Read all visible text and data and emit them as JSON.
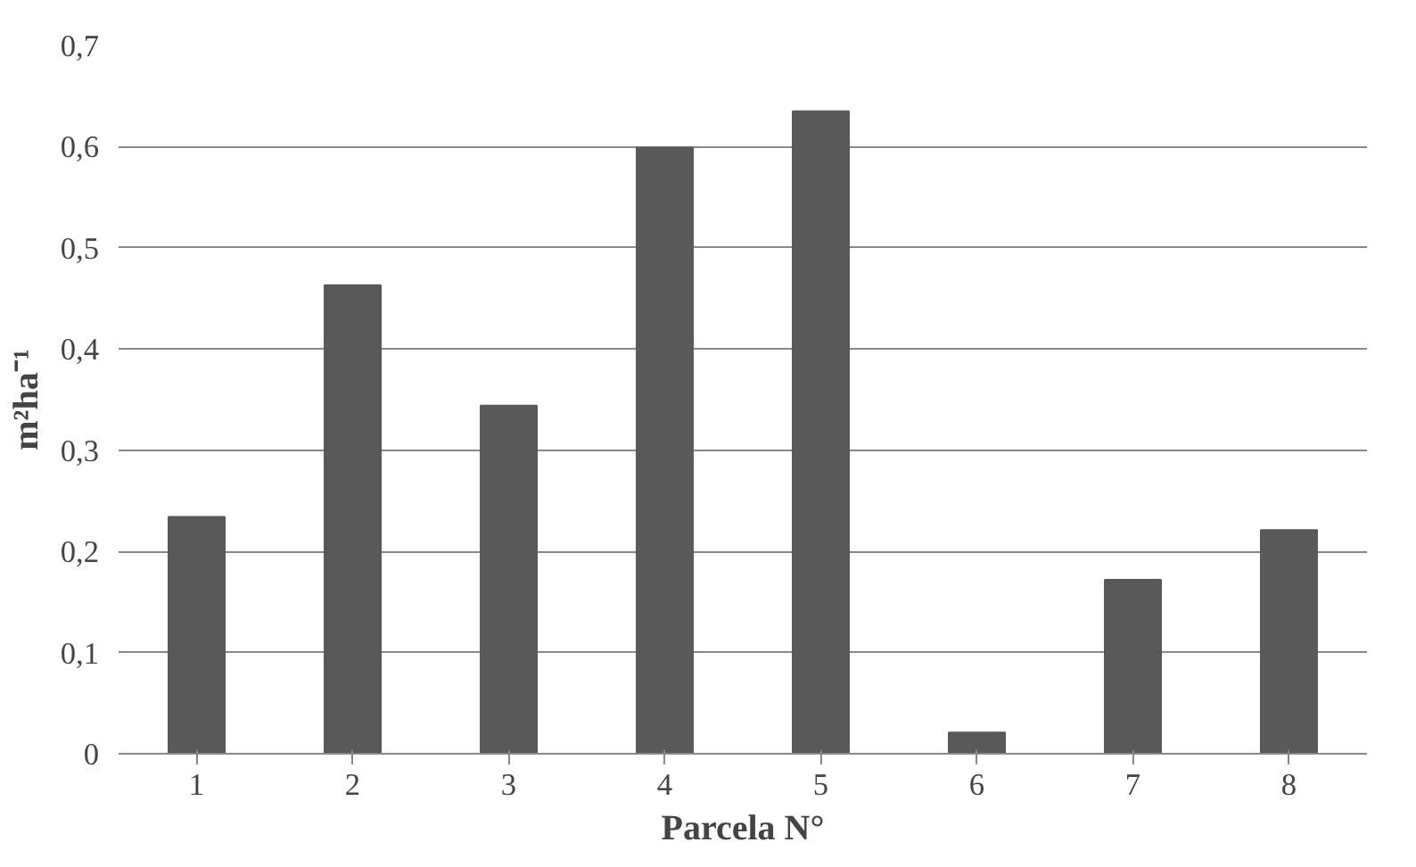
{
  "chart_data": {
    "type": "bar",
    "xlabel": "Parcela N°",
    "ylabel": "m²ha⁻¹",
    "categories": [
      "1",
      "2",
      "3",
      "4",
      "5",
      "6",
      "7",
      "8"
    ],
    "values": [
      0.234,
      0.463,
      0.344,
      0.599,
      0.635,
      0.021,
      0.172,
      0.221
    ],
    "color": "#595959",
    "ylim": [
      0,
      0.7
    ],
    "yticks": [
      0,
      {
        "value": 0.1,
        "label": "0,1"
      },
      {
        "value": 0.2,
        "label": "0,2"
      },
      {
        "value": 0.3,
        "label": "0,3"
      },
      {
        "value": 0.4,
        "label": "0,4"
      },
      {
        "value": 0.5,
        "label": "0,5"
      },
      {
        "value": 0.6,
        "label": "0,6"
      },
      {
        "value": 0.7,
        "label": "0,7"
      }
    ],
    "grid": "y"
  }
}
